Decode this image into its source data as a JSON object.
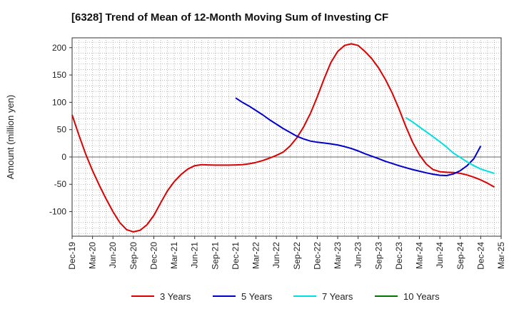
{
  "chart_data": {
    "type": "line",
    "title": "[6328]  Trend of Mean of 12-Month Moving Sum of Investing CF",
    "xlabel": "",
    "ylabel": "Amount (million yen)",
    "ylim": [
      -145,
      218
    ],
    "yticks": [
      -100,
      -50,
      0,
      50,
      100,
      150,
      200
    ],
    "x_tick_labels": [
      "Dec-19",
      "Mar-20",
      "Jun-20",
      "Sep-20",
      "Dec-20",
      "Mar-21",
      "Jun-21",
      "Sep-21",
      "Dec-21",
      "Mar-22",
      "Jun-22",
      "Sep-22",
      "Dec-22",
      "Mar-23",
      "Jun-23",
      "Sep-23",
      "Dec-23",
      "Mar-24",
      "Jun-24",
      "Sep-24",
      "Dec-24",
      "Mar-25"
    ],
    "grid": true,
    "legend_position": "bottom",
    "series": [
      {
        "name": "3 Years",
        "color": "#dd0000",
        "start_index": 0,
        "values": [
          77,
          40,
          5,
          -25,
          -52,
          -77,
          -100,
          -120,
          -133,
          -137,
          -134,
          -124,
          -107,
          -84,
          -62,
          -45,
          -32,
          -22,
          -16,
          -14,
          -14.5,
          -15,
          -15,
          -15,
          -14.5,
          -14,
          -12.5,
          -10,
          -6.5,
          -2,
          3,
          9,
          20,
          35,
          55,
          80,
          110,
          143,
          173,
          193,
          204,
          207,
          204,
          193,
          180,
          163,
          142,
          117,
          88,
          56,
          27,
          4,
          -13,
          -23,
          -27,
          -28,
          -28.5,
          -30,
          -33,
          -37,
          -42,
          -48,
          -55
        ]
      },
      {
        "name": "5 Years",
        "color": "#0000cc",
        "start_index": 24,
        "values": [
          108,
          100,
          93,
          85,
          77,
          68,
          60,
          52,
          45,
          38,
          33,
          29,
          27,
          25.5,
          24,
          22,
          19,
          15.5,
          11,
          6,
          1.5,
          -3,
          -8,
          -12,
          -16,
          -19.5,
          -23,
          -26,
          -29,
          -31.5,
          -33.5,
          -34,
          -31,
          -25,
          -16,
          -3,
          20
        ]
      },
      {
        "name": "7 Years",
        "color": "#00e0e0",
        "start_index": 49,
        "values": [
          72,
          64,
          55,
          46,
          37,
          28,
          18,
          7,
          -1,
          -9,
          -16,
          -22,
          -26,
          -30
        ]
      },
      {
        "name": "10 Years",
        "color": "#007700",
        "start_index": 0,
        "values": []
      }
    ]
  }
}
